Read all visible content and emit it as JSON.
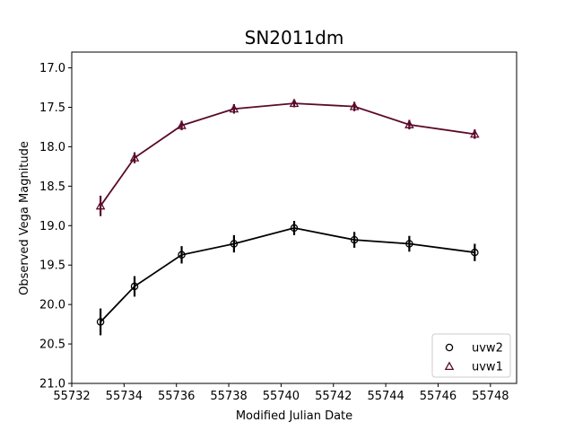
{
  "chart_data": {
    "type": "scatter",
    "title": "SN2011dm",
    "xlabel": "Modified Julian Date",
    "ylabel": "Observed Vega Magnitude",
    "xlim": [
      55732,
      55749
    ],
    "ylim": [
      21.0,
      16.8
    ],
    "y_inverted": true,
    "x_ticks": [
      55732,
      55734,
      55736,
      55738,
      55740,
      55742,
      55744,
      55746,
      55748
    ],
    "y_ticks": [
      17.0,
      17.5,
      18.0,
      18.5,
      19.0,
      19.5,
      20.0,
      20.5,
      21.0
    ],
    "y_tick_labels": [
      "17.0",
      "17.5",
      "18.0",
      "18.5",
      "19.0",
      "19.5",
      "20.0",
      "20.5",
      "21.0"
    ],
    "grid": false,
    "legend_position": "lower-right",
    "series": [
      {
        "name": "uvw2",
        "marker": "circle",
        "color": "#000000",
        "x": [
          55733.1,
          55734.4,
          55736.2,
          55738.2,
          55740.5,
          55742.8,
          55744.9,
          55747.4
        ],
        "y": [
          20.22,
          19.77,
          19.37,
          19.23,
          19.03,
          19.18,
          19.23,
          19.34
        ],
        "yerr": [
          0.17,
          0.13,
          0.11,
          0.11,
          0.09,
          0.1,
          0.1,
          0.11
        ]
      },
      {
        "name": "uvw1",
        "marker": "triangle",
        "color": "#5c0a2b",
        "x": [
          55733.1,
          55734.4,
          55736.2,
          55738.2,
          55740.5,
          55742.8,
          55744.9,
          55747.4
        ],
        "y": [
          18.75,
          18.14,
          17.73,
          17.52,
          17.45,
          17.49,
          17.72,
          17.84
        ],
        "yerr": [
          0.13,
          0.07,
          0.06,
          0.06,
          0.05,
          0.06,
          0.06,
          0.06
        ]
      }
    ]
  }
}
